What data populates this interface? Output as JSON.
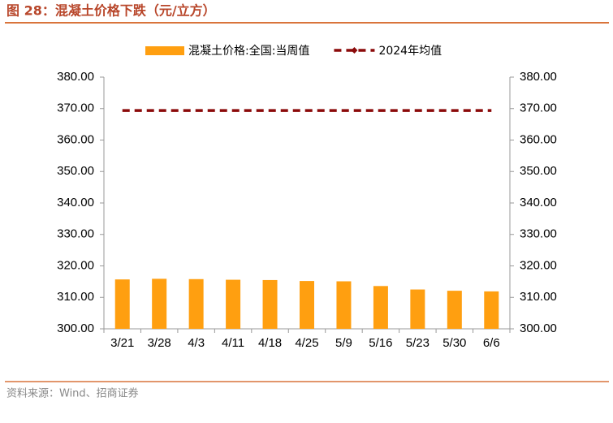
{
  "title": "图 28：混凝土价格下跌（元/立方）",
  "source": "资料来源：Wind、招商证券",
  "chart_data": {
    "type": "bar",
    "categories": [
      "3/21",
      "3/28",
      "4/3",
      "4/11",
      "4/18",
      "4/25",
      "5/9",
      "5/16",
      "5/23",
      "5/30",
      "6/6"
    ],
    "series": [
      {
        "name": "混凝土价格:全国:当周值",
        "type": "bar",
        "color": "#ff9f10",
        "values": [
          315.7,
          315.9,
          315.8,
          315.6,
          315.5,
          315.2,
          315.1,
          313.6,
          312.5,
          312.1,
          311.9
        ]
      },
      {
        "name": "2024年均值",
        "type": "line",
        "axis": "y2",
        "color": "#8b0a0a",
        "values": [
          369.4,
          369.4,
          369.4,
          369.4,
          369.4,
          369.4,
          369.4,
          369.4,
          369.4,
          369.4,
          369.4
        ]
      }
    ],
    "ylim": [
      300,
      380
    ],
    "yticks": [
      {
        "value": 300,
        "label": "300.00"
      },
      {
        "value": 310,
        "label": "310.00"
      },
      {
        "value": 320,
        "label": "320.00"
      },
      {
        "value": 330,
        "label": "330.00"
      },
      {
        "value": 340,
        "label": "340.00"
      },
      {
        "value": 350,
        "label": "350.00"
      },
      {
        "value": 360,
        "label": "360.00"
      },
      {
        "value": 370,
        "label": "370.00"
      },
      {
        "value": 380,
        "label": "380.00"
      }
    ],
    "y2lim": [
      300,
      380
    ],
    "y2ticks": [
      {
        "value": 300,
        "label": "300.00"
      },
      {
        "value": 310,
        "label": "310.00"
      },
      {
        "value": 320,
        "label": "320.00"
      },
      {
        "value": 330,
        "label": "330.00"
      },
      {
        "value": 340,
        "label": "340.00"
      },
      {
        "value": 350,
        "label": "350.00"
      },
      {
        "value": 360,
        "label": "360.00"
      },
      {
        "value": 370,
        "label": "370.00"
      },
      {
        "value": 380,
        "label": "380.00"
      }
    ]
  }
}
